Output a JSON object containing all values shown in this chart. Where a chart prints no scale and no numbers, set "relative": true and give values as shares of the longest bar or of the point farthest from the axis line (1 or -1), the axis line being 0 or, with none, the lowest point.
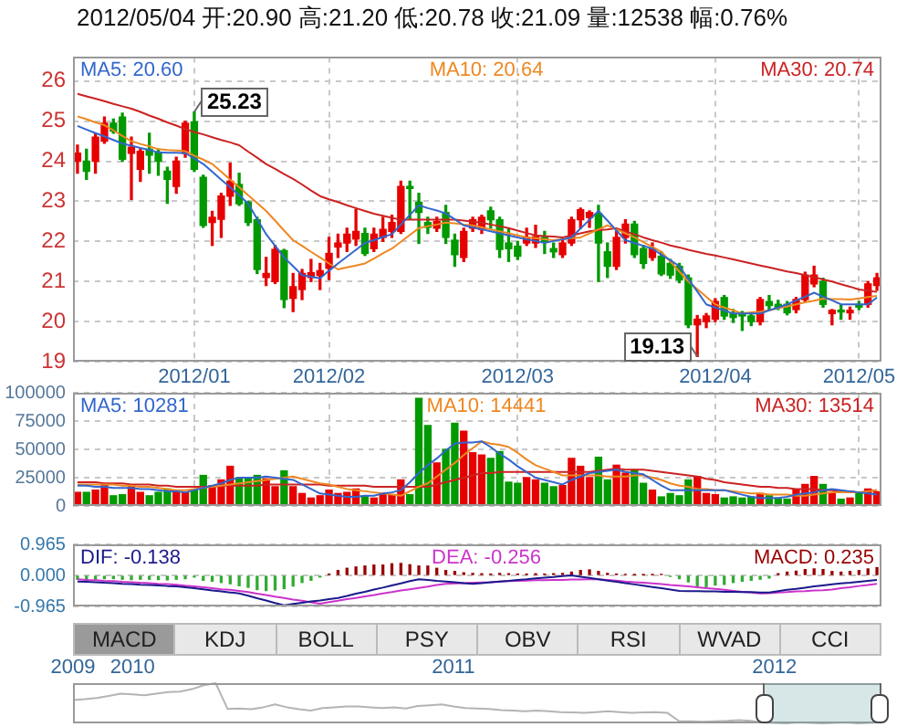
{
  "chart_data": [
    {
      "type": "candlestick",
      "title": "2012/05/04 开:20.90 高:21.20 低:20.78 收:21.09 量:12538 幅:0.76%",
      "ylim": [
        19,
        26.6
      ],
      "yticks": [
        19,
        20,
        21,
        22,
        23,
        24,
        25,
        26
      ],
      "grid": true,
      "legend": "top",
      "categories": [
        null,
        null,
        null,
        null,
        null,
        null,
        null,
        null,
        null,
        null,
        null,
        null,
        null,
        "2012/01",
        null,
        null,
        null,
        null,
        null,
        null,
        null,
        null,
        null,
        null,
        null,
        null,
        null,
        null,
        "2012/02",
        null,
        null,
        null,
        null,
        null,
        null,
        null,
        null,
        null,
        null,
        null,
        null,
        null,
        null,
        null,
        null,
        null,
        null,
        null,
        null,
        "2012/03",
        null,
        null,
        null,
        null,
        null,
        null,
        null,
        null,
        null,
        null,
        null,
        null,
        null,
        null,
        null,
        null,
        null,
        null,
        null,
        null,
        null,
        "2012/04",
        null,
        null,
        null,
        null,
        null,
        null,
        null,
        null,
        null,
        null,
        null,
        null,
        null,
        null,
        null,
        "2012/05",
        null,
        null
      ],
      "ohlc": [
        [
          24.0,
          24.4,
          23.7,
          24.2
        ],
        [
          24.0,
          24.3,
          23.55,
          23.75
        ],
        [
          24.0,
          24.7,
          23.7,
          24.6
        ],
        [
          24.5,
          25.1,
          24.45,
          24.95
        ],
        [
          24.95,
          25.05,
          24.7,
          24.75
        ],
        [
          25.1,
          25.2,
          24.0,
          24.05
        ],
        [
          24.2,
          24.6,
          23.05,
          24.35
        ],
        [
          23.8,
          24.3,
          23.5,
          24.25
        ],
        [
          24.3,
          24.7,
          23.7,
          24.15
        ],
        [
          24.2,
          24.3,
          23.65,
          24.0
        ],
        [
          23.75,
          23.85,
          22.95,
          23.55
        ],
        [
          23.37,
          24.1,
          23.2,
          24.0
        ],
        [
          24.2,
          25.0,
          24.1,
          24.95
        ],
        [
          24.98,
          25.23,
          23.75,
          23.8
        ],
        [
          23.6,
          23.65,
          22.35,
          22.4
        ],
        [
          22.47,
          22.75,
          21.9,
          22.6
        ],
        [
          22.55,
          23.2,
          22.1,
          23.13
        ],
        [
          23.13,
          23.95,
          22.9,
          23.5
        ],
        [
          23.42,
          23.7,
          22.9,
          22.94
        ],
        [
          22.98,
          23.0,
          22.4,
          22.47
        ],
        [
          22.54,
          22.6,
          21.2,
          21.3
        ],
        [
          21.1,
          21.6,
          20.9,
          21.2
        ],
        [
          21.0,
          21.9,
          20.95,
          21.8
        ],
        [
          21.77,
          21.8,
          20.35,
          20.55
        ],
        [
          20.58,
          21.2,
          20.25,
          20.87
        ],
        [
          20.8,
          21.3,
          20.55,
          21.2
        ],
        [
          21.1,
          21.55,
          21.0,
          21.22
        ],
        [
          21.15,
          21.45,
          20.8,
          21.27
        ],
        [
          21.33,
          22.1,
          21.05,
          21.7
        ],
        [
          21.86,
          22.18,
          21.6,
          21.96
        ],
        [
          21.96,
          22.33,
          21.75,
          22.18
        ],
        [
          22.06,
          22.8,
          21.9,
          22.25
        ],
        [
          22.2,
          22.33,
          21.65,
          21.7
        ],
        [
          21.82,
          22.33,
          21.75,
          22.18
        ],
        [
          22.1,
          22.6,
          22.0,
          22.3
        ],
        [
          22.25,
          22.65,
          22.1,
          22.47
        ],
        [
          22.25,
          23.5,
          22.2,
          23.37
        ],
        [
          23.37,
          23.5,
          22.55,
          23.32
        ],
        [
          22.98,
          23.2,
          21.95,
          22.72
        ],
        [
          22.47,
          22.6,
          22.2,
          22.35
        ],
        [
          22.33,
          22.6,
          22.25,
          22.5
        ],
        [
          22.72,
          22.9,
          21.95,
          22.1
        ],
        [
          22.03,
          22.18,
          21.38,
          21.67
        ],
        [
          21.6,
          22.33,
          21.5,
          22.25
        ],
        [
          22.33,
          22.6,
          22.25,
          22.54
        ],
        [
          22.3,
          22.65,
          22.2,
          22.6
        ],
        [
          22.76,
          22.85,
          22.33,
          22.54
        ],
        [
          22.54,
          22.6,
          21.6,
          21.8
        ],
        [
          21.96,
          22.33,
          21.5,
          21.82
        ],
        [
          21.88,
          22.0,
          21.55,
          21.63
        ],
        [
          21.96,
          22.33,
          21.9,
          22.1
        ],
        [
          21.96,
          22.4,
          21.85,
          22.12
        ],
        [
          22.1,
          22.25,
          21.7,
          22.0
        ],
        [
          21.82,
          21.96,
          21.6,
          21.74
        ],
        [
          21.67,
          22.03,
          21.6,
          21.96
        ],
        [
          21.96,
          22.6,
          21.9,
          22.54
        ],
        [
          22.54,
          22.83,
          22.33,
          22.79
        ],
        [
          22.6,
          22.76,
          22.35,
          22.72
        ],
        [
          22.7,
          22.9,
          21.0,
          21.96
        ],
        [
          21.74,
          21.96,
          21.1,
          21.38
        ],
        [
          21.38,
          22.25,
          21.3,
          22.1
        ],
        [
          22.1,
          22.54,
          21.96,
          22.43
        ],
        [
          22.43,
          22.5,
          21.6,
          21.67
        ],
        [
          21.82,
          21.9,
          21.33,
          21.45
        ],
        [
          21.6,
          21.96,
          21.53,
          21.82
        ],
        [
          21.63,
          21.74,
          21.15,
          21.19
        ],
        [
          21.45,
          21.55,
          21.08,
          21.16
        ],
        [
          21.38,
          21.45,
          20.97,
          21.04
        ],
        [
          21.09,
          21.16,
          19.85,
          19.92
        ],
        [
          19.92,
          20.15,
          19.13,
          20.06
        ],
        [
          20.0,
          20.2,
          19.85,
          20.14
        ],
        [
          20.06,
          20.57,
          20.0,
          20.5
        ],
        [
          20.6,
          20.65,
          20.06,
          20.14
        ],
        [
          20.2,
          20.3,
          19.98,
          20.1
        ],
        [
          20.22,
          20.25,
          19.78,
          20.14
        ],
        [
          20.14,
          20.22,
          19.9,
          20.0
        ],
        [
          20.0,
          20.6,
          19.92,
          20.55
        ],
        [
          20.5,
          20.65,
          20.3,
          20.4
        ],
        [
          20.43,
          20.53,
          20.3,
          20.36
        ],
        [
          20.43,
          20.5,
          20.17,
          20.22
        ],
        [
          20.3,
          20.6,
          20.22,
          20.55
        ],
        [
          20.55,
          21.23,
          20.5,
          21.16
        ],
        [
          20.94,
          21.38,
          20.87,
          21.16
        ],
        [
          21.0,
          21.08,
          20.36,
          20.43
        ],
        [
          20.2,
          20.3,
          19.92,
          20.28
        ],
        [
          20.28,
          20.4,
          20.06,
          20.24
        ],
        [
          20.22,
          20.36,
          20.06,
          20.28
        ],
        [
          20.43,
          20.5,
          20.3,
          20.36
        ],
        [
          20.43,
          21.0,
          20.36,
          20.94
        ],
        [
          20.9,
          21.2,
          20.78,
          21.09
        ]
      ],
      "colors": [
        "#e60000",
        "#009900",
        "#e60000",
        "#e60000",
        "#009900",
        "#009900",
        "#e60000",
        "#e60000",
        "#009900",
        "#009900",
        "#009900",
        "#e60000",
        "#e60000",
        "#009900",
        "#009900",
        "#e60000",
        "#e60000",
        "#e60000",
        "#009900",
        "#009900",
        "#009900",
        "#e60000",
        "#e60000",
        "#009900",
        "#e60000",
        "#e60000",
        "#e60000",
        "#e60000",
        "#e60000",
        "#e60000",
        "#e60000",
        "#e60000",
        "#009900",
        "#e60000",
        "#e60000",
        "#e60000",
        "#e60000",
        "#009900",
        "#009900",
        "#009900",
        "#e60000",
        "#009900",
        "#009900",
        "#e60000",
        "#e60000",
        "#e60000",
        "#009900",
        "#009900",
        "#009900",
        "#009900",
        "#e60000",
        "#e60000",
        "#009900",
        "#009900",
        "#e60000",
        "#e60000",
        "#e60000",
        "#e60000",
        "#009900",
        "#009900",
        "#e60000",
        "#e60000",
        "#009900",
        "#009900",
        "#e60000",
        "#009900",
        "#009900",
        "#009900",
        "#009900",
        "#e60000",
        "#e60000",
        "#e60000",
        "#009900",
        "#009900",
        "#009900",
        "#009900",
        "#e60000",
        "#009900",
        "#009900",
        "#009900",
        "#e60000",
        "#e60000",
        "#e60000",
        "#009900",
        "#e60000",
        "#009900",
        "#e60000",
        "#009900",
        "#e60000",
        "#e60000"
      ],
      "series": [
        {
          "name": "MA5: 20.60",
          "type": "line",
          "color": "#3366cc",
          "values": [
            24.88,
            24.79,
            24.7,
            24.62,
            24.53,
            24.44,
            24.39,
            24.33,
            24.28,
            24.22,
            24.21,
            24.21,
            24.2,
            24.07,
            23.93,
            23.74,
            23.54,
            23.35,
            23.15,
            22.94,
            22.56,
            22.18,
            21.89,
            21.6,
            21.38,
            21.16,
            21.12,
            21.08,
            21.27,
            21.45,
            21.62,
            21.79,
            21.96,
            22.03,
            22.11,
            22.18,
            22.42,
            22.66,
            22.9,
            22.83,
            22.77,
            22.7,
            22.55,
            22.4,
            22.35,
            22.3,
            22.25,
            22.2,
            22.15,
            22.1,
            22.05,
            22.01,
            21.96,
            22.01,
            22.05,
            22.1,
            22.32,
            22.54,
            22.76,
            22.52,
            22.27,
            22.03,
            21.96,
            21.89,
            21.82,
            21.67,
            21.53,
            21.38,
            21.06,
            20.75,
            20.43,
            20.35,
            20.28,
            20.2,
            20.2,
            20.2,
            20.2,
            20.28,
            20.35,
            20.43,
            20.53,
            20.62,
            20.72,
            20.62,
            20.53,
            20.43,
            20.43,
            20.43,
            20.43,
            20.6
          ]
        },
        {
          "name": "MA10: 20.64",
          "type": "line",
          "color": "#ee8822",
          "values": [
            25.12,
            25.05,
            24.97,
            24.9,
            24.77,
            24.63,
            24.5,
            24.43,
            24.37,
            24.3,
            24.28,
            24.27,
            24.25,
            24.14,
            24.04,
            23.93,
            23.74,
            23.54,
            23.35,
            23.15,
            22.96,
            22.76,
            22.52,
            22.27,
            22.03,
            21.89,
            21.74,
            21.6,
            21.45,
            21.3,
            21.35,
            21.4,
            21.45,
            21.57,
            21.7,
            21.82,
            21.99,
            22.16,
            22.33,
            22.38,
            22.42,
            22.47,
            22.45,
            22.42,
            22.4,
            22.35,
            22.3,
            22.25,
            22.2,
            22.15,
            22.1,
            22.08,
            22.05,
            22.03,
            22.05,
            22.08,
            22.1,
            22.2,
            22.3,
            22.4,
            22.3,
            22.2,
            22.1,
            21.98,
            21.86,
            21.74,
            21.49,
            21.25,
            21.0,
            20.81,
            20.62,
            20.43,
            20.35,
            20.28,
            20.2,
            20.23,
            20.25,
            20.28,
            20.33,
            20.38,
            20.43,
            20.48,
            20.52,
            20.57,
            20.56,
            20.56,
            20.55,
            20.58,
            20.61,
            20.64
          ]
        },
        {
          "name": "MA30: 20.74",
          "type": "line",
          "color": "#cc2222",
          "values": [
            25.68,
            25.62,
            25.56,
            25.5,
            25.43,
            25.37,
            25.31,
            25.23,
            25.14,
            25.06,
            24.97,
            24.89,
            24.8,
            24.73,
            24.67,
            24.6,
            24.53,
            24.47,
            24.4,
            24.24,
            24.09,
            23.93,
            23.81,
            23.68,
            23.56,
            23.42,
            23.27,
            23.13,
            23.05,
            22.98,
            22.9,
            22.83,
            22.76,
            22.69,
            22.64,
            22.59,
            22.54,
            22.54,
            22.54,
            22.54,
            22.54,
            22.54,
            22.54,
            22.52,
            22.49,
            22.47,
            22.42,
            22.38,
            22.33,
            22.27,
            22.21,
            22.15,
            22.13,
            22.12,
            22.1,
            22.15,
            22.2,
            22.25,
            22.28,
            22.3,
            22.33,
            22.25,
            22.18,
            22.1,
            22.03,
            21.97,
            21.9,
            21.85,
            21.79,
            21.74,
            21.69,
            21.65,
            21.6,
            21.55,
            21.5,
            21.45,
            21.4,
            21.35,
            21.3,
            21.25,
            21.21,
            21.16,
            21.11,
            21.05,
            21.0,
            20.93,
            20.87,
            20.8,
            20.77,
            20.74
          ]
        }
      ],
      "annotations": [
        {
          "text": "25.23",
          "x": "2012/01",
          "y": 25.23
        },
        "19.13"
      ]
    },
    {
      "type": "bar",
      "ylim": [
        0,
        100000
      ],
      "yticks": [
        0,
        25000,
        50000,
        75000,
        100000
      ],
      "grid": true,
      "legend": "top",
      "tick_labels": "y",
      "categories": [
        null,
        null,
        null,
        null,
        null,
        null,
        null,
        null,
        null,
        null,
        null,
        null,
        null,
        "2012/01",
        null,
        null,
        null,
        null,
        null,
        null,
        null,
        null,
        null,
        null,
        null,
        null,
        null,
        null,
        "2012/02",
        null,
        null,
        null,
        null,
        null,
        null,
        null,
        null,
        null,
        null,
        null,
        null,
        null,
        null,
        null,
        null,
        null,
        null,
        null,
        null,
        "2012/03",
        null,
        null,
        null,
        null,
        null,
        null,
        null,
        null,
        null,
        null,
        null,
        null,
        null,
        null,
        null,
        null,
        null,
        null,
        null,
        null,
        null,
        "2012/04",
        null,
        null,
        null,
        null,
        null,
        null,
        null,
        null,
        null,
        null,
        null,
        null,
        null,
        null,
        null,
        "2012/05",
        null,
        null
      ],
      "values": [
        12000,
        12000,
        14000,
        18000,
        9000,
        10000,
        18000,
        12000,
        9000,
        12000,
        15000,
        12000,
        12000,
        14000,
        27000,
        18000,
        23000,
        35000,
        25000,
        24000,
        27000,
        24000,
        17000,
        31000,
        17000,
        11000,
        7000,
        9000,
        14000,
        11000,
        12000,
        15000,
        9000,
        7000,
        10000,
        10000,
        23000,
        10000,
        95000,
        71000,
        38000,
        50000,
        73000,
        66000,
        47000,
        45000,
        42000,
        48000,
        21000,
        20000,
        25000,
        23000,
        20000,
        17000,
        18000,
        42000,
        35000,
        25000,
        43000,
        23000,
        36000,
        29000,
        32000,
        20000,
        14000,
        8000,
        11000,
        9000,
        23000,
        26000,
        11000,
        10000,
        7000,
        8000,
        7000,
        8000,
        11000,
        9000,
        6000,
        6000,
        14000,
        19000,
        26000,
        19000,
        11000,
        6000,
        7000,
        11000,
        15000,
        12538
      ],
      "colors": [
        "#e60000",
        "#009900",
        "#e60000",
        "#e60000",
        "#009900",
        "#009900",
        "#e60000",
        "#e60000",
        "#009900",
        "#009900",
        "#009900",
        "#e60000",
        "#e60000",
        "#009900",
        "#009900",
        "#e60000",
        "#e60000",
        "#e60000",
        "#009900",
        "#009900",
        "#009900",
        "#e60000",
        "#e60000",
        "#009900",
        "#e60000",
        "#e60000",
        "#e60000",
        "#e60000",
        "#e60000",
        "#e60000",
        "#e60000",
        "#e60000",
        "#009900",
        "#e60000",
        "#e60000",
        "#e60000",
        "#e60000",
        "#009900",
        "#009900",
        "#009900",
        "#e60000",
        "#009900",
        "#009900",
        "#e60000",
        "#e60000",
        "#e60000",
        "#009900",
        "#009900",
        "#009900",
        "#009900",
        "#e60000",
        "#e60000",
        "#009900",
        "#009900",
        "#e60000",
        "#e60000",
        "#e60000",
        "#e60000",
        "#009900",
        "#009900",
        "#e60000",
        "#e60000",
        "#009900",
        "#009900",
        "#e60000",
        "#009900",
        "#009900",
        "#009900",
        "#009900",
        "#e60000",
        "#e60000",
        "#e60000",
        "#009900",
        "#009900",
        "#009900",
        "#009900",
        "#e60000",
        "#009900",
        "#009900",
        "#009900",
        "#e60000",
        "#e60000",
        "#e60000",
        "#009900",
        "#e60000",
        "#009900",
        "#e60000",
        "#009900",
        "#e60000",
        "#e60000"
      ],
      "series": [
        {
          "name": "MA5: 10281",
          "type": "line",
          "color": "#3366cc",
          "values": [
            18000,
            18000,
            17000,
            17000,
            16000,
            16000,
            16000,
            15000,
            15000,
            14000,
            13000,
            13000,
            12000,
            14000,
            16000,
            18000,
            20000,
            23000,
            25000,
            25000,
            25000,
            26000,
            25000,
            24000,
            23000,
            19000,
            15000,
            11000,
            10000,
            9000,
            8000,
            8000,
            9000,
            9000,
            11000,
            12000,
            14000,
            21000,
            29000,
            36000,
            42000,
            49000,
            55000,
            56000,
            56000,
            57000,
            52000,
            46000,
            41000,
            35000,
            30000,
            25000,
            23000,
            21000,
            19000,
            23000,
            26000,
            29000,
            30000,
            31000,
            32000,
            30000,
            29000,
            28000,
            23000,
            18000,
            14000,
            14000,
            14000,
            14000,
            14000,
            14000,
            14000,
            12000,
            10000,
            8000,
            7000,
            7000,
            7000,
            8000,
            10000,
            11000,
            12000,
            14000,
            15000,
            14000,
            13000,
            12000,
            11000,
            10000
          ]
        },
        {
          "name": "MA10: 14441",
          "type": "line",
          "color": "#ee8822",
          "values": [
            19000,
            19000,
            19000,
            19000,
            19000,
            18000,
            18000,
            17000,
            17000,
            16000,
            15000,
            14000,
            14000,
            15000,
            16000,
            17000,
            18000,
            19000,
            20000,
            21000,
            22000,
            23000,
            24000,
            25000,
            26000,
            24000,
            22000,
            20000,
            19000,
            17000,
            15000,
            14000,
            13000,
            12000,
            11000,
            10000,
            9000,
            13000,
            17000,
            20000,
            26000,
            32000,
            38000,
            45000,
            51000,
            57000,
            55000,
            54000,
            52000,
            47000,
            41000,
            36000,
            33000,
            30000,
            27000,
            27000,
            27000,
            27000,
            27000,
            26000,
            26000,
            26000,
            27000,
            27000,
            25000,
            23000,
            20000,
            18000,
            17000,
            15000,
            15000,
            14000,
            14000,
            13000,
            12000,
            11000,
            11000,
            10000,
            10000,
            10000,
            9000,
            9000,
            10000,
            11000,
            12000,
            12000,
            12000,
            12000,
            13000,
            14000
          ]
        },
        {
          "name": "MA30: 13514",
          "type": "line",
          "color": "#cc2222",
          "values": [
            21000,
            21000,
            21000,
            20000,
            20000,
            20000,
            19000,
            19000,
            19000,
            18000,
            18000,
            17000,
            17000,
            17000,
            17000,
            17000,
            18000,
            18000,
            18000,
            18000,
            18000,
            19000,
            19000,
            19000,
            19000,
            19000,
            19000,
            19000,
            18000,
            18000,
            18000,
            18000,
            18000,
            17000,
            17000,
            17000,
            17000,
            17000,
            17000,
            17000,
            19000,
            21000,
            23000,
            25000,
            27000,
            29000,
            29000,
            30000,
            30000,
            30000,
            30000,
            30000,
            30000,
            30000,
            30000,
            30000,
            30000,
            30000,
            31000,
            32000,
            33000,
            32000,
            32000,
            32000,
            31000,
            30000,
            29000,
            28000,
            27000,
            26000,
            24000,
            23000,
            21000,
            20000,
            19000,
            18000,
            17000,
            17000,
            16000,
            16000,
            15000,
            15000,
            15000,
            14000,
            14000,
            13000,
            13000,
            12000,
            13000,
            14000
          ]
        }
      ]
    },
    {
      "type": "bar",
      "ylim": [
        -0.965,
        0.965
      ],
      "yticks": [
        0.965,
        {
          "value": 0,
          "label": "0.000"
        },
        -0.965
      ],
      "grid": "y",
      "legend": "top",
      "tick_labels": "y",
      "categories": [
        null,
        null,
        null,
        null,
        null,
        null,
        null,
        null,
        null,
        null,
        null,
        null,
        null,
        "2012/01",
        null,
        null,
        null,
        null,
        null,
        null,
        null,
        null,
        null,
        null,
        null,
        null,
        null,
        null,
        "2012/02",
        null,
        null,
        null,
        null,
        null,
        null,
        null,
        null,
        null,
        null,
        null,
        null,
        null,
        null,
        null,
        null,
        null,
        null,
        null,
        null,
        "2012/03",
        null,
        null,
        null,
        null,
        null,
        null,
        null,
        null,
        null,
        null,
        null,
        null,
        null,
        null,
        null,
        null,
        null,
        null,
        null,
        null,
        null,
        "2012/04",
        null,
        null,
        null,
        null,
        null,
        null,
        null,
        null,
        null,
        null,
        null,
        null,
        null,
        null,
        null,
        "2012/05",
        null,
        null
      ],
      "series": [
        {
          "name": "DIF: -0.138",
          "type": "line",
          "color": "#1a1a8c",
          "values": [
            -0.19,
            -0.2,
            -0.21,
            -0.23,
            -0.24,
            -0.26,
            -0.27,
            -0.29,
            -0.3,
            -0.31,
            -0.33,
            -0.34,
            -0.37,
            -0.4,
            -0.43,
            -0.47,
            -0.5,
            -0.53,
            -0.56,
            -0.63,
            -0.71,
            -0.78,
            -0.86,
            -0.93,
            -0.89,
            -0.85,
            -0.81,
            -0.78,
            -0.74,
            -0.7,
            -0.64,
            -0.57,
            -0.51,
            -0.44,
            -0.38,
            -0.31,
            -0.25,
            -0.18,
            -0.12,
            -0.14,
            -0.17,
            -0.19,
            -0.21,
            -0.24,
            -0.26,
            -0.24,
            -0.21,
            -0.19,
            -0.17,
            -0.14,
            -0.12,
            -0.09,
            -0.07,
            -0.05,
            -0.02,
            0.0,
            -0.04,
            -0.08,
            -0.12,
            -0.16,
            -0.2,
            -0.24,
            -0.28,
            -0.32,
            -0.36,
            -0.4,
            -0.44,
            -0.48,
            -0.49,
            -0.49,
            -0.5,
            -0.5,
            -0.51,
            -0.51,
            -0.52,
            -0.52,
            -0.53,
            -0.53,
            -0.49,
            -0.45,
            -0.42,
            -0.38,
            -0.34,
            -0.31,
            -0.28,
            -0.25,
            -0.23,
            -0.2,
            -0.17,
            -0.14
          ]
        },
        {
          "name": "DEA: -0.256",
          "type": "line",
          "color": "#cc33cc",
          "values": [
            -0.12,
            -0.14,
            -0.15,
            -0.17,
            -0.18,
            -0.2,
            -0.21,
            -0.23,
            -0.24,
            -0.26,
            -0.27,
            -0.29,
            -0.32,
            -0.34,
            -0.37,
            -0.4,
            -0.43,
            -0.45,
            -0.48,
            -0.52,
            -0.57,
            -0.61,
            -0.66,
            -0.7,
            -0.75,
            -0.79,
            -0.84,
            -0.88,
            -0.83,
            -0.79,
            -0.74,
            -0.7,
            -0.65,
            -0.61,
            -0.56,
            -0.52,
            -0.47,
            -0.43,
            -0.39,
            -0.35,
            -0.3,
            -0.26,
            -0.25,
            -0.24,
            -0.23,
            -0.22,
            -0.21,
            -0.19,
            -0.18,
            -0.17,
            -0.16,
            -0.15,
            -0.15,
            -0.14,
            -0.14,
            -0.13,
            -0.13,
            -0.12,
            -0.12,
            -0.14,
            -0.16,
            -0.19,
            -0.21,
            -0.23,
            -0.25,
            -0.27,
            -0.3,
            -0.32,
            -0.34,
            -0.37,
            -0.4,
            -0.42,
            -0.45,
            -0.48,
            -0.51,
            -0.53,
            -0.56,
            -0.55,
            -0.53,
            -0.52,
            -0.5,
            -0.49,
            -0.47,
            -0.46,
            -0.44,
            -0.4,
            -0.37,
            -0.33,
            -0.3,
            -0.26
          ]
        },
        {
          "name": "MACD: 0.235",
          "type": "bar",
          "color": "#990000",
          "values": [
            -0.12,
            -0.13,
            -0.12,
            -0.1,
            -0.1,
            -0.12,
            -0.13,
            -0.12,
            -0.12,
            -0.13,
            -0.14,
            -0.12,
            -0.1,
            -0.05,
            -0.15,
            -0.18,
            -0.22,
            -0.26,
            -0.32,
            -0.37,
            -0.44,
            -0.47,
            -0.45,
            -0.41,
            -0.33,
            -0.22,
            -0.15,
            -0.05,
            0.04,
            0.15,
            0.22,
            0.26,
            0.29,
            0.32,
            0.32,
            0.36,
            0.37,
            0.33,
            0.29,
            0.29,
            0.22,
            0.15,
            0.12,
            0.08,
            0.06,
            0.05,
            0.04,
            0.06,
            0.05,
            0.04,
            0.04,
            0.05,
            0.04,
            0.05,
            0.06,
            0.1,
            0.15,
            0.17,
            0.12,
            0.06,
            0.04,
            0.03,
            0.02,
            0.02,
            0.02,
            0.03,
            -0.03,
            -0.1,
            -0.2,
            -0.32,
            -0.35,
            -0.3,
            -0.28,
            -0.22,
            -0.18,
            -0.15,
            -0.12,
            -0.08,
            0.05,
            0.1,
            0.13,
            0.18,
            0.2,
            0.18,
            0.12,
            0.1,
            0.12,
            0.15,
            0.2,
            0.24
          ],
          "colors": [
            "#33aa33",
            "#33aa33",
            "#33aa33",
            "#33aa33",
            "#33aa33",
            "#33aa33",
            "#33aa33",
            "#33aa33",
            "#33aa33",
            "#33aa33",
            "#33aa33",
            "#33aa33",
            "#33aa33",
            "#33aa33",
            "#33aa33",
            "#33aa33",
            "#33aa33",
            "#33aa33",
            "#33aa33",
            "#33aa33",
            "#33aa33",
            "#33aa33",
            "#33aa33",
            "#33aa33",
            "#33aa33",
            "#33aa33",
            "#33aa33",
            "#33aa33",
            "#990000",
            "#990000",
            "#990000",
            "#990000",
            "#990000",
            "#990000",
            "#990000",
            "#990000",
            "#990000",
            "#990000",
            "#990000",
            "#990000",
            "#990000",
            "#990000",
            "#990000",
            "#990000",
            "#990000",
            "#990000",
            "#990000",
            "#990000",
            "#990000",
            "#990000",
            "#990000",
            "#990000",
            "#990000",
            "#990000",
            "#990000",
            "#990000",
            "#990000",
            "#990000",
            "#990000",
            "#990000",
            "#990000",
            "#990000",
            "#990000",
            "#990000",
            "#990000",
            "#990000",
            "#33aa33",
            "#33aa33",
            "#33aa33",
            "#33aa33",
            "#33aa33",
            "#33aa33",
            "#33aa33",
            "#33aa33",
            "#33aa33",
            "#33aa33",
            "#33aa33",
            "#33aa33",
            "#990000",
            "#990000",
            "#990000",
            "#990000",
            "#990000",
            "#990000",
            "#990000",
            "#990000",
            "#990000",
            "#990000",
            "#990000",
            "#990000"
          ]
        }
      ]
    },
    {
      "type": "other",
      "annotations": [
        "MACD",
        "KDJ",
        "BOLL",
        "PSY",
        "OBV",
        "RSI",
        "WVAD",
        "CCI"
      ]
    },
    {
      "type": "line",
      "relative": true,
      "tick_labels": "x",
      "color": "#b4b4b4",
      "categories": [
        "2009",
        null,
        null,
        null,
        null,
        "2010",
        null,
        null,
        null,
        null,
        null,
        null,
        null,
        null,
        null,
        null,
        null,
        null,
        null,
        null,
        null,
        null,
        null,
        null,
        null,
        null,
        null,
        null,
        null,
        null,
        null,
        null,
        "2011",
        null,
        null,
        null,
        null,
        null,
        null,
        null,
        null,
        null,
        null,
        null,
        null,
        null,
        null,
        null,
        null,
        null,
        null,
        null,
        null,
        null,
        null,
        null,
        null,
        null,
        null,
        "2012",
        null,
        null,
        null,
        null,
        null,
        null,
        null,
        null,
        null
      ],
      "values": [
        0.58,
        0.6,
        0.63,
        0.68,
        0.74,
        0.72,
        0.7,
        0.74,
        0.78,
        0.79,
        0.85,
        0.95,
        1,
        0.36,
        0.37,
        0.35,
        0.4,
        0.47,
        0.4,
        0.35,
        0.32,
        0.38,
        0.4,
        0.42,
        0.42,
        0.4,
        0.38,
        0.4,
        0.37,
        0.43,
        0.45,
        0.47,
        0.42,
        0.38,
        0.37,
        0.36,
        0.33,
        0.32,
        0.3,
        0.32,
        0.3,
        0.28,
        0.27,
        0.26,
        0.28,
        0.3,
        0.28,
        0.26,
        0.27,
        0.28,
        0.26,
        0.05,
        0.05,
        0.04,
        0.05,
        0.06,
        0.08,
        0.06,
        0.02,
        0.01,
        0,
        0.02,
        0.01,
        0,
        0.01,
        0.02,
        0,
        0.01,
        0.03
      ]
    }
  ]
}
